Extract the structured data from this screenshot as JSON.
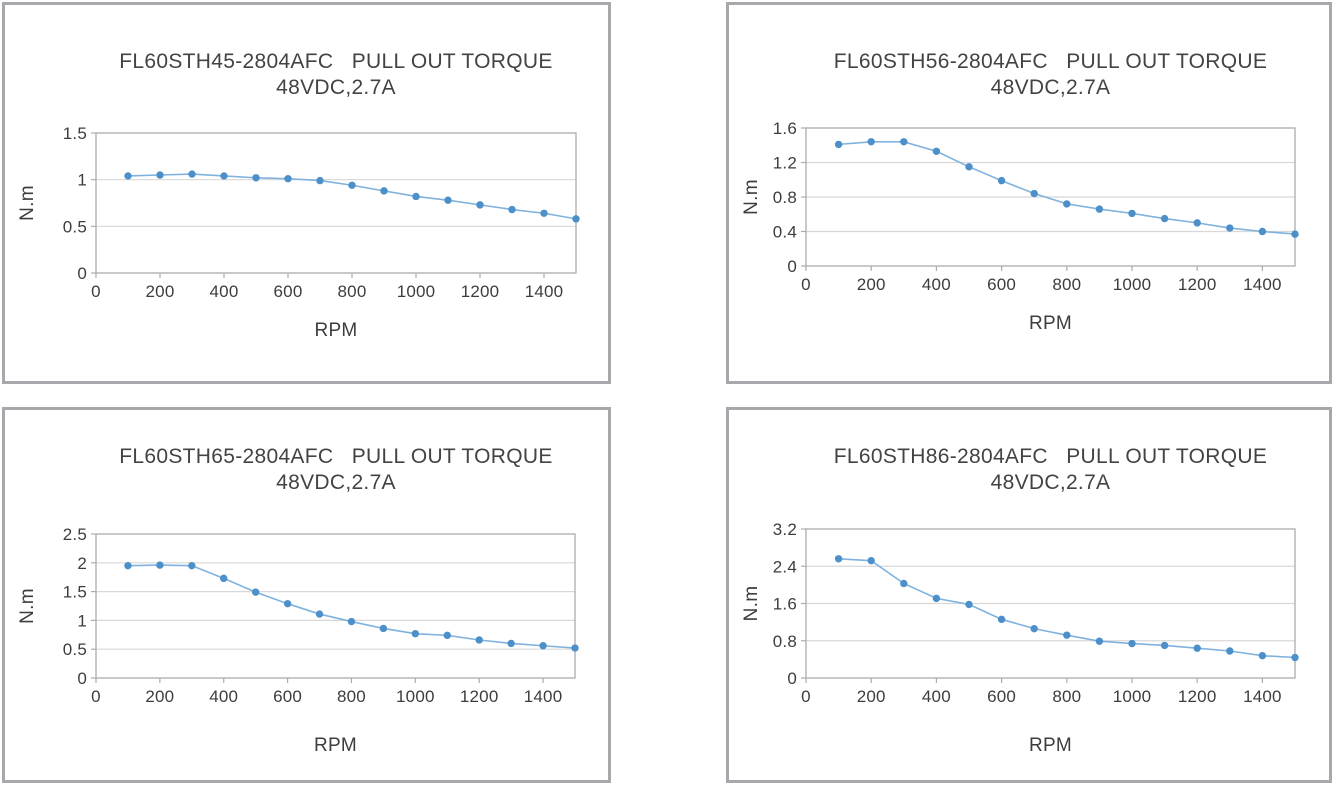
{
  "style": {
    "page_background": "#ffffff",
    "panel_border": "#a8a8ac",
    "plot_frame": "#acacae",
    "gridline": "#d8d8d8",
    "line_color": "#7fb2de",
    "marker_color": "#4d90c9",
    "text_color": "#3d3d3d"
  },
  "chart_data": [
    {
      "type": "line",
      "title": "FL60STH45-2804AFC   PULL OUT TORQUE",
      "subtitle": "48VDC,2.7A",
      "xlabel": "RPM",
      "ylabel": "N.m",
      "x": [
        100,
        200,
        300,
        400,
        500,
        600,
        700,
        800,
        900,
        1000,
        1100,
        1200,
        1300,
        1400,
        1500
      ],
      "values": [
        1.04,
        1.05,
        1.06,
        1.04,
        1.02,
        1.01,
        0.99,
        0.94,
        0.88,
        0.82,
        0.78,
        0.73,
        0.68,
        0.64,
        0.58
      ],
      "xlim": [
        0,
        1500
      ],
      "ylim": [
        0,
        1.5
      ],
      "xticks": [
        0,
        200,
        400,
        600,
        800,
        1000,
        1200,
        1400
      ],
      "yticks": [
        0,
        0.5,
        1,
        1.5
      ],
      "grid": true,
      "legend": "none",
      "marker": "circle"
    },
    {
      "type": "line",
      "title": "FL60STH56-2804AFC   PULL OUT TORQUE",
      "subtitle": "48VDC,2.7A",
      "xlabel": "RPM",
      "ylabel": "N.m",
      "x": [
        100,
        200,
        300,
        400,
        500,
        600,
        700,
        800,
        900,
        1000,
        1100,
        1200,
        1300,
        1400,
        1500
      ],
      "values": [
        1.41,
        1.44,
        1.44,
        1.33,
        1.15,
        0.99,
        0.84,
        0.72,
        0.66,
        0.61,
        0.55,
        0.5,
        0.44,
        0.4,
        0.37
      ],
      "xlim": [
        0,
        1500
      ],
      "ylim": [
        0,
        1.6
      ],
      "xticks": [
        0,
        200,
        400,
        600,
        800,
        1000,
        1200,
        1400
      ],
      "yticks": [
        0,
        0.4,
        0.8,
        1.2,
        1.6
      ],
      "grid": true,
      "legend": "none",
      "marker": "circle"
    },
    {
      "type": "line",
      "title": "FL60STH65-2804AFC   PULL OUT TORQUE",
      "subtitle": "48VDC,2.7A",
      "xlabel": "RPM",
      "ylabel": "N.m",
      "x": [
        100,
        200,
        300,
        400,
        500,
        600,
        700,
        800,
        900,
        1000,
        1100,
        1200,
        1300,
        1400,
        1500
      ],
      "values": [
        1.95,
        1.96,
        1.95,
        1.73,
        1.49,
        1.29,
        1.11,
        0.98,
        0.86,
        0.77,
        0.74,
        0.66,
        0.6,
        0.56,
        0.52
      ],
      "xlim": [
        0,
        1500
      ],
      "ylim": [
        0,
        2.5
      ],
      "xticks": [
        0,
        200,
        400,
        600,
        800,
        1000,
        1200,
        1400
      ],
      "yticks": [
        0,
        0.5,
        1,
        1.5,
        2,
        2.5
      ],
      "grid": true,
      "legend": "none",
      "marker": "circle"
    },
    {
      "type": "line",
      "title": "FL60STH86-2804AFC   PULL OUT TORQUE",
      "subtitle": "48VDC,2.7A",
      "xlabel": "RPM",
      "ylabel": "N.m",
      "x": [
        100,
        200,
        300,
        400,
        500,
        600,
        700,
        800,
        900,
        1000,
        1100,
        1200,
        1300,
        1400,
        1500
      ],
      "values": [
        2.56,
        2.52,
        2.03,
        1.71,
        1.58,
        1.26,
        1.06,
        0.92,
        0.79,
        0.74,
        0.7,
        0.64,
        0.58,
        0.48,
        0.44
      ],
      "xlim": [
        0,
        1500
      ],
      "ylim": [
        0,
        3.2
      ],
      "xticks": [
        0,
        200,
        400,
        600,
        800,
        1000,
        1200,
        1400
      ],
      "yticks": [
        0,
        0.8,
        1.6,
        2.4,
        3.2
      ],
      "grid": true,
      "legend": "none",
      "marker": "circle"
    }
  ]
}
